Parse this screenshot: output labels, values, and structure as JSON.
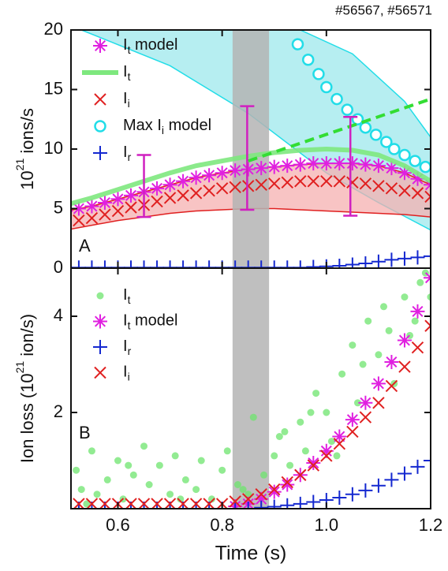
{
  "chart_data": [
    {
      "type": "line",
      "panel_label": "A",
      "annotation": "#56567, #56571",
      "ylabel": {
        "text": "10",
        "sup": "21",
        "suffix": " ions/s"
      },
      "xlim": [
        0.51,
        1.2
      ],
      "xticks": [
        0.6,
        0.8,
        1,
        1.2
      ],
      "ylim": [
        0,
        20
      ],
      "yticks": [
        0,
        5,
        10,
        15,
        20
      ],
      "shade": {
        "x": [
          0.82,
          0.89
        ],
        "color": "#b4b4b4"
      },
      "bands": [
        {
          "color": "#9ee8ec",
          "x_upper": [
            0.53,
            0.95,
            1.05,
            1.15,
            1.2
          ],
          "upper": [
            20,
            20,
            18,
            14,
            11
          ],
          "x_lower": [
            0.53,
            0.7,
            0.85,
            1.0,
            1.1,
            1.2
          ],
          "lower": [
            20,
            17,
            13,
            8,
            5.5,
            3.2
          ]
        },
        {
          "color": "#f6b0b0",
          "x_upper": [
            0.5,
            0.55,
            0.6,
            0.65,
            0.7,
            0.75,
            0.8,
            0.85,
            0.9,
            0.95,
            1.0,
            1.05,
            1.1,
            1.15,
            1.2
          ],
          "upper": [
            4.8,
            5.2,
            5.8,
            6.4,
            7.0,
            7.6,
            8.0,
            8.3,
            8.5,
            8.7,
            8.8,
            8.8,
            8.6,
            8.0,
            7.0
          ],
          "x_lower": [
            0.5,
            0.55,
            0.6,
            0.65,
            0.7,
            0.75,
            0.8,
            0.85,
            0.9,
            0.95,
            1.0,
            1.05,
            1.1,
            1.15,
            1.2
          ],
          "lower": [
            3.2,
            3.6,
            4.0,
            4.3,
            4.6,
            4.8,
            4.9,
            5.0,
            5.0,
            4.9,
            4.8,
            4.7,
            4.6,
            4.5,
            4.3
          ]
        }
      ],
      "extrapolation": {
        "x": [
          0.85,
          1.2
        ],
        "values": [
          9,
          14.2
        ],
        "color": "#33dd33"
      },
      "series": [
        {
          "name": "I",
          "sub": "t",
          "suffix": " model",
          "marker": "asterisk",
          "color": "#e020e0",
          "x": [
            0.5,
            0.525,
            0.55,
            0.575,
            0.6,
            0.625,
            0.65,
            0.675,
            0.7,
            0.725,
            0.75,
            0.775,
            0.8,
            0.825,
            0.85,
            0.875,
            0.9,
            0.925,
            0.95,
            0.975,
            1.0,
            1.025,
            1.05,
            1.075,
            1.1,
            1.125,
            1.15,
            1.175,
            1.2
          ],
          "values": [
            4.8,
            5.0,
            5.2,
            5.5,
            5.8,
            6.1,
            6.4,
            6.7,
            7.0,
            7.3,
            7.6,
            7.8,
            8.0,
            8.2,
            8.3,
            8.4,
            8.5,
            8.6,
            8.7,
            8.8,
            8.8,
            8.8,
            8.8,
            8.7,
            8.6,
            8.4,
            8.0,
            7.5,
            7.0
          ]
        },
        {
          "name": "I",
          "sub": "t",
          "marker": "line",
          "color": "#7ee87e",
          "x": [
            0.5,
            0.55,
            0.6,
            0.65,
            0.7,
            0.75,
            0.8,
            0.85,
            0.9,
            0.95,
            1.0,
            1.05,
            1.1,
            1.15,
            1.2
          ],
          "values": [
            5.3,
            5.9,
            6.6,
            7.3,
            8.0,
            8.6,
            9.0,
            9.4,
            9.7,
            9.9,
            10.0,
            9.9,
            9.5,
            8.6,
            7.3
          ]
        },
        {
          "name": "I",
          "sub": "i",
          "marker": "x",
          "color": "#e02020",
          "x": [
            0.5,
            0.525,
            0.55,
            0.575,
            0.6,
            0.625,
            0.65,
            0.675,
            0.7,
            0.725,
            0.75,
            0.775,
            0.8,
            0.825,
            0.85,
            0.875,
            0.9,
            0.925,
            0.95,
            0.975,
            1.0,
            1.025,
            1.05,
            1.075,
            1.1,
            1.125,
            1.15,
            1.175,
            1.2
          ],
          "values": [
            3.8,
            4.0,
            4.2,
            4.5,
            4.8,
            5.1,
            5.3,
            5.6,
            5.9,
            6.1,
            6.3,
            6.5,
            6.7,
            6.8,
            6.9,
            7.0,
            7.1,
            7.2,
            7.3,
            7.3,
            7.3,
            7.3,
            7.2,
            7.1,
            6.9,
            6.7,
            6.5,
            6.3,
            6.0
          ]
        },
        {
          "name": "Max I",
          "sub": "i",
          "suffix": " model",
          "marker": "circle",
          "color": "#22dde8",
          "x": [
            0.945,
            0.965,
            0.985,
            1.0,
            1.02,
            1.04,
            1.06,
            1.075,
            1.095,
            1.115,
            1.13,
            1.15,
            1.17,
            1.19
          ],
          "values": [
            18.8,
            17.5,
            16.3,
            15.2,
            14.2,
            13.3,
            12.5,
            11.8,
            11.2,
            10.6,
            10.0,
            9.5,
            9.0,
            8.5
          ]
        },
        {
          "name": "I",
          "sub": "r",
          "marker": "plus",
          "color": "#1428d0",
          "x": [
            0.5,
            0.525,
            0.55,
            0.575,
            0.6,
            0.625,
            0.65,
            0.675,
            0.7,
            0.725,
            0.75,
            0.775,
            0.8,
            0.825,
            0.85,
            0.875,
            0.9,
            0.925,
            0.95,
            0.975,
            1.0,
            1.025,
            1.05,
            1.075,
            1.1,
            1.125,
            1.15,
            1.175,
            1.2
          ],
          "values": [
            0.05,
            0.05,
            0.05,
            0.05,
            0.05,
            0.05,
            0.05,
            0.05,
            0.05,
            0.05,
            0.05,
            0.05,
            0.05,
            0.05,
            0.05,
            0.05,
            0.05,
            0.05,
            0.05,
            0.1,
            0.15,
            0.2,
            0.3,
            0.4,
            0.55,
            0.7,
            0.8,
            0.9,
            1.0
          ]
        }
      ],
      "error_bars": {
        "color": "#d020c0",
        "x": [
          0.65,
          0.848,
          1.046
        ],
        "low": [
          4.3,
          4.9,
          4.4
        ],
        "high": [
          9.5,
          13.6,
          12.7
        ]
      }
    },
    {
      "type": "line",
      "panel_label": "B",
      "xlabel": "Time (s)",
      "ylabel": {
        "text": "Ion loss (10",
        "sup": "21",
        "suffix": " ion/s)"
      },
      "xlim": [
        0.51,
        1.2
      ],
      "xticks": [
        0.6,
        0.8,
        {
          "value": 1,
          "label": "1.0"
        },
        1.2
      ],
      "ylim": [
        0,
        5
      ],
      "yticks": [
        2,
        4
      ],
      "shade": {
        "x": [
          0.82,
          0.89
        ],
        "color": "#b4b4b4"
      },
      "series": [
        {
          "name": "I",
          "sub": "t",
          "marker": "dot",
          "color": "#6ee46e",
          "x": [
            0.52,
            0.53,
            0.55,
            0.56,
            0.58,
            0.6,
            0.61,
            0.63,
            0.65,
            0.66,
            0.68,
            0.7,
            0.71,
            0.73,
            0.75,
            0.76,
            0.78,
            0.8,
            0.81,
            0.83,
            0.85,
            0.86,
            0.88,
            0.9,
            0.91,
            0.93,
            0.95,
            0.96,
            0.98,
            1.0,
            1.01,
            1.03,
            1.05,
            1.06,
            1.08,
            1.1,
            1.11,
            1.13,
            1.15,
            1.16,
            1.18,
            1.2,
            0.54,
            0.62,
            0.72,
            0.84,
            0.92,
            0.97,
            1.02,
            1.07,
            1.12,
            1.17,
            1.19
          ],
          "values": [
            0.8,
            0.4,
            1.2,
            0.3,
            0.6,
            1.0,
            0.2,
            0.7,
            1.3,
            0.5,
            0.9,
            0.3,
            1.1,
            0.6,
            0.4,
            1.0,
            0.2,
            0.8,
            1.2,
            0.5,
            0.3,
            1.9,
            0.7,
            1.1,
            1.5,
            0.9,
            1.8,
            1.2,
            2.4,
            2.0,
            1.4,
            2.8,
            3.4,
            2.2,
            3.9,
            3.2,
            4.2,
            2.6,
            4.4,
            3.6,
            4.7,
            4.4,
            0.1,
            0.9,
            0.2,
            0.4,
            1.6,
            2.0,
            1.1,
            3.0,
            3.7,
            3.9,
            4.9
          ]
        },
        {
          "name": "I",
          "sub": "t",
          "suffix": " model",
          "marker": "asterisk",
          "color": "#e020e0",
          "x": [
            0.825,
            0.85,
            0.875,
            0.9,
            0.925,
            0.95,
            0.975,
            1.0,
            1.025,
            1.05,
            1.075,
            1.1,
            1.125,
            1.15,
            1.175,
            1.2
          ],
          "values": [
            0.05,
            0.1,
            0.2,
            0.35,
            0.5,
            0.7,
            0.95,
            1.2,
            1.5,
            1.85,
            2.2,
            2.6,
            3.05,
            3.5,
            4.1,
            4.8
          ]
        },
        {
          "name": "I",
          "sub": "r",
          "marker": "plus",
          "color": "#1428d0",
          "x": [
            0.525,
            0.55,
            0.575,
            0.6,
            0.625,
            0.65,
            0.675,
            0.7,
            0.725,
            0.75,
            0.775,
            0.8,
            0.825,
            0.85,
            0.875,
            0.9,
            0.925,
            0.95,
            0.975,
            1.0,
            1.025,
            1.05,
            1.075,
            1.1,
            1.125,
            1.15,
            1.175,
            1.2
          ],
          "values": [
            0,
            0,
            0,
            0,
            0,
            0,
            0,
            0,
            0,
            0,
            0,
            0,
            0,
            0,
            0.02,
            0.04,
            0.07,
            0.1,
            0.14,
            0.18,
            0.23,
            0.3,
            0.38,
            0.48,
            0.6,
            0.73,
            0.87,
            1.0
          ]
        },
        {
          "name": "I",
          "sub": "i",
          "marker": "x",
          "color": "#e02020",
          "x": [
            0.525,
            0.55,
            0.575,
            0.6,
            0.625,
            0.65,
            0.675,
            0.7,
            0.725,
            0.75,
            0.775,
            0.8,
            0.825,
            0.85,
            0.875,
            0.9,
            0.925,
            0.95,
            0.975,
            1.0,
            1.025,
            1.05,
            1.075,
            1.1,
            1.125,
            1.15,
            1.175,
            1.2
          ],
          "values": [
            0.1,
            0.1,
            0.1,
            0.1,
            0.1,
            0.1,
            0.1,
            0.1,
            0.1,
            0.1,
            0.1,
            0.1,
            0.15,
            0.2,
            0.3,
            0.4,
            0.55,
            0.7,
            0.9,
            1.1,
            1.35,
            1.6,
            1.9,
            2.2,
            2.55,
            2.95,
            3.35,
            3.8
          ]
        }
      ]
    }
  ]
}
